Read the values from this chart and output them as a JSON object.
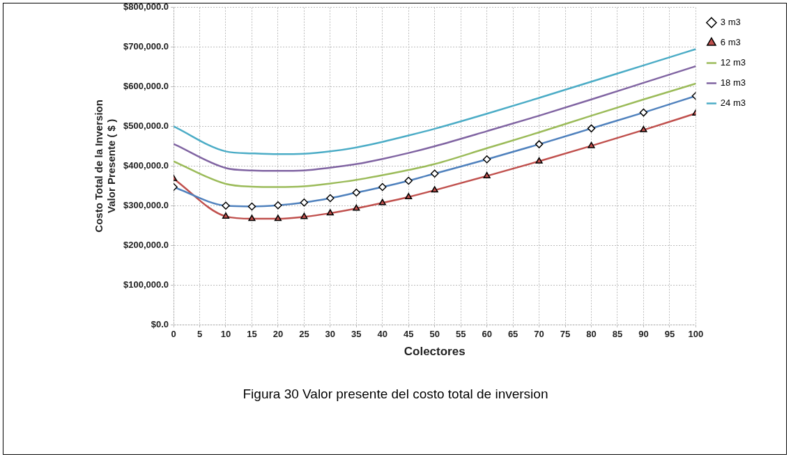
{
  "chart_data": {
    "type": "line",
    "xlabel": "Colectores",
    "ylabel": "Costo Total de la Inversion\nValor Presente ( $ )",
    "annotations": [
      "Figura 30 Valor presente del costo total de inversion"
    ],
    "x": [
      0,
      10,
      15,
      20,
      25,
      30,
      35,
      40,
      45,
      50,
      60,
      70,
      80,
      90,
      100
    ],
    "series": [
      {
        "name": "3 m3",
        "color": "#4f81bd",
        "marker": "diamond",
        "values": [
          347000,
          300000,
          298000,
          301000,
          308000,
          319000,
          333000,
          347000,
          363000,
          381000,
          417000,
          455000,
          495000,
          535000,
          577000
        ]
      },
      {
        "name": "6 m3",
        "color": "#c0504d",
        "marker": "triangle",
        "values": [
          368000,
          273000,
          267000,
          267000,
          272000,
          281000,
          293000,
          307000,
          322000,
          339000,
          375000,
          412000,
          451000,
          491000,
          533000
        ]
      },
      {
        "name": "12 m3",
        "color": "#9bbb59",
        "marker": "none",
        "values": [
          412000,
          355000,
          348000,
          347000,
          349000,
          356000,
          365000,
          377000,
          390000,
          405000,
          445000,
          485000,
          527000,
          568000,
          608000
        ]
      },
      {
        "name": "18 m3",
        "color": "#8064a2",
        "marker": "none",
        "values": [
          456000,
          395000,
          389000,
          388000,
          389000,
          396000,
          405000,
          418000,
          433000,
          450000,
          488000,
          527000,
          568000,
          610000,
          652000
        ]
      },
      {
        "name": "24 m3",
        "color": "#4bacc6",
        "marker": "none",
        "values": [
          500000,
          437000,
          432000,
          430000,
          431000,
          437000,
          447000,
          461000,
          477000,
          494000,
          532000,
          572000,
          613000,
          654000,
          695000
        ]
      }
    ],
    "xlim": [
      0,
      100
    ],
    "xticks": [
      0,
      5,
      10,
      15,
      20,
      25,
      30,
      35,
      40,
      45,
      50,
      55,
      60,
      65,
      70,
      75,
      80,
      85,
      90,
      95,
      100
    ],
    "ylim": [
      0,
      800000
    ],
    "yticks": [
      {
        "value": 0,
        "label": "$0.0"
      },
      {
        "value": 100000,
        "label": "$100,000.0"
      },
      {
        "value": 200000,
        "label": "$200,000.0"
      },
      {
        "value": 300000,
        "label": "$300,000.0"
      },
      {
        "value": 400000,
        "label": "$400,000.0"
      },
      {
        "value": 500000,
        "label": "$500,000.0"
      },
      {
        "value": 600000,
        "label": "$600,000.0"
      },
      {
        "value": 700000,
        "label": "$700,000.0"
      },
      {
        "value": 800000,
        "label": "$800,000.0"
      }
    ],
    "grid": true,
    "legend": "right",
    "line_style": "solid"
  }
}
